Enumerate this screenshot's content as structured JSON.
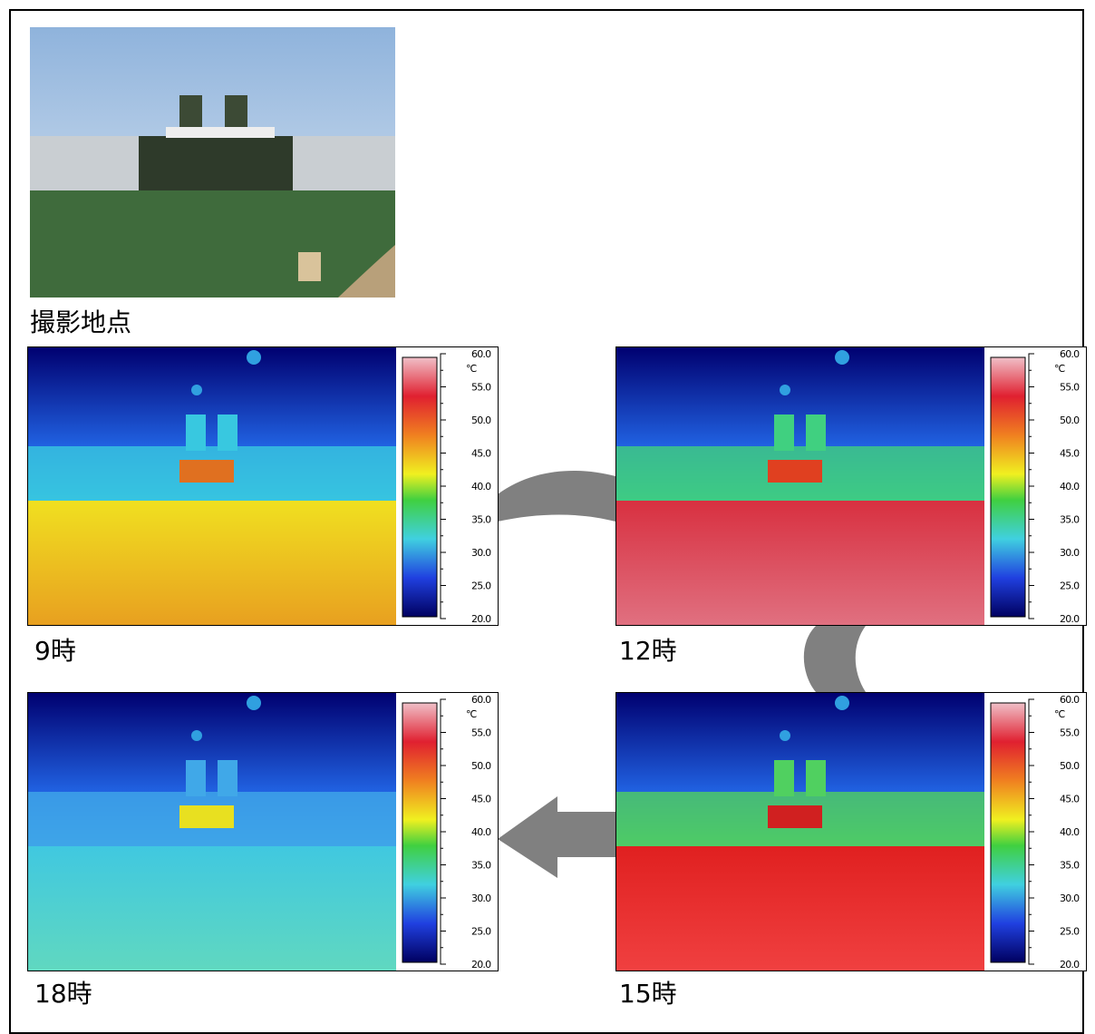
{
  "location_photo": {
    "caption": "撮影地点"
  },
  "panels": [
    {
      "caption": "9時"
    },
    {
      "caption": "12時"
    },
    {
      "caption": "15時"
    },
    {
      "caption": "18時"
    }
  ],
  "color_scale": {
    "unit": "℃",
    "ticks": [
      "60.0",
      "55.0",
      "50.0",
      "45.0",
      "40.0",
      "35.0",
      "30.0",
      "25.0",
      "20.0"
    ]
  }
}
